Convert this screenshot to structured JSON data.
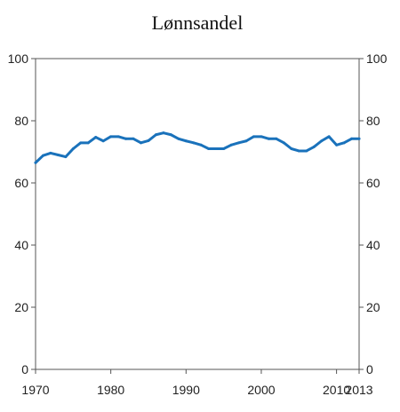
{
  "chart_data": {
    "type": "line",
    "title": "Lønnsandel",
    "xlabel": "",
    "ylabel": "",
    "xlim": [
      1970,
      2013
    ],
    "ylim": [
      0,
      100
    ],
    "x_ticks": [
      1970,
      1980,
      1990,
      2000,
      2010,
      2013
    ],
    "y_ticks": [
      0,
      20,
      40,
      60,
      80,
      100
    ],
    "y_axis_right": true,
    "grid": false,
    "x": [
      1970,
      1971,
      1972,
      1973,
      1974,
      1975,
      1976,
      1977,
      1978,
      1979,
      1980,
      1981,
      1982,
      1983,
      1984,
      1985,
      1986,
      1987,
      1988,
      1989,
      1990,
      1991,
      1992,
      1993,
      1994,
      1995,
      1996,
      1997,
      1998,
      1999,
      2000,
      2001,
      2002,
      2003,
      2004,
      2005,
      2006,
      2007,
      2008,
      2009,
      2010,
      2011,
      2012,
      2013
    ],
    "series": [
      {
        "color": "#1a72bb",
        "values": [
          66.5,
          68.8,
          69.6,
          69.0,
          68.4,
          71.0,
          72.9,
          72.9,
          74.7,
          73.5,
          74.9,
          74.9,
          74.2,
          74.2,
          72.9,
          73.6,
          75.5,
          76.1,
          75.5,
          74.2,
          73.5,
          72.9,
          72.2,
          71.0,
          71.0,
          71.0,
          72.2,
          72.9,
          73.5,
          74.9,
          74.9,
          74.2,
          74.2,
          72.9,
          71.0,
          70.3,
          70.3,
          71.6,
          73.5,
          74.9,
          72.2,
          72.9,
          74.2,
          74.2
        ]
      }
    ]
  }
}
